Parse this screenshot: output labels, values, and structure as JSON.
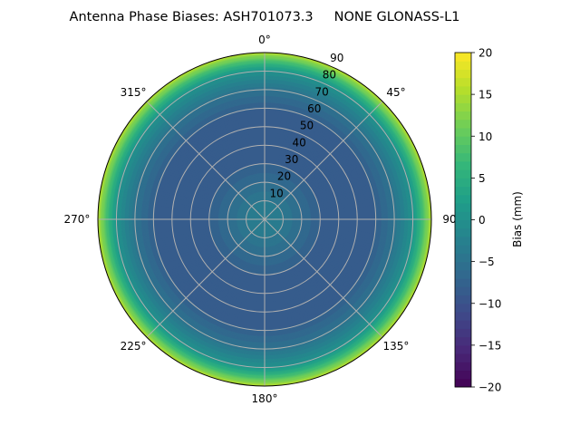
{
  "chart_data": {
    "type": "heatmap",
    "projection": "polar",
    "title": "Antenna Phase Biases: ASH701073.3     NONE GLONASS-L1",
    "angular_ticks": [
      "0°",
      "45°",
      "90°",
      "135°",
      "180°",
      "225°",
      "270°",
      "315°"
    ],
    "radial_ticks": [
      "10",
      "20",
      "30",
      "40",
      "50",
      "60",
      "70",
      "80",
      "90"
    ],
    "radial_range": [
      0,
      90
    ],
    "grid": true,
    "colormap": "viridis",
    "colorbar": {
      "label": "Bias (mm)",
      "range": [
        -20,
        20
      ],
      "ticks": [
        "-20",
        "-15",
        "-10",
        "-5",
        "0",
        "5",
        "10",
        "15",
        "20"
      ]
    },
    "profile_zenith_deg": [
      0,
      10,
      20,
      30,
      40,
      50,
      60,
      70,
      80,
      85,
      90
    ],
    "profile_bias_mm": [
      -3,
      -4,
      -6,
      -8,
      -9,
      -9,
      -8,
      -5,
      0,
      7,
      15
    ]
  }
}
